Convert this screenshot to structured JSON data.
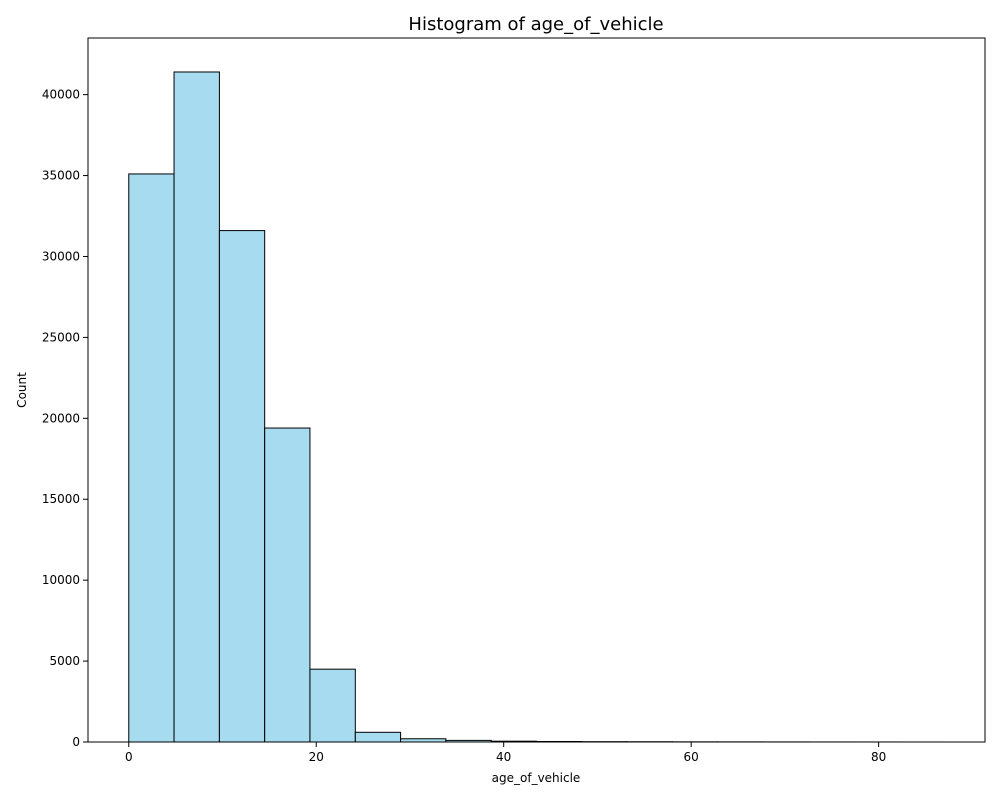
{
  "chart_data": {
    "type": "bar",
    "title": "Histogram of age_of_vehicle",
    "xlabel": "age_of_vehicle",
    "ylabel": "Count",
    "xlim": [
      -4.35,
      91.35
    ],
    "ylim": [
      0,
      43500
    ],
    "x_ticks": [
      0,
      20,
      40,
      60,
      80
    ],
    "y_ticks": [
      0,
      5000,
      10000,
      15000,
      20000,
      25000,
      30000,
      35000,
      40000
    ],
    "bin_edges": [
      0,
      4.83,
      9.67,
      14.5,
      19.33,
      24.17,
      29.0,
      33.83,
      38.67,
      43.5,
      48.33,
      53.17,
      58.0,
      62.83,
      67.67,
      72.5,
      77.33,
      82.17,
      87.0
    ],
    "values": [
      35100,
      41400,
      31600,
      19400,
      4500,
      600,
      200,
      100,
      50,
      30,
      20,
      15,
      10,
      8,
      5,
      3,
      2,
      1
    ],
    "grid": false,
    "colors": {
      "bar_fill": "#a6dbf0",
      "bar_edge": "#000000",
      "axis": "#000000"
    }
  }
}
